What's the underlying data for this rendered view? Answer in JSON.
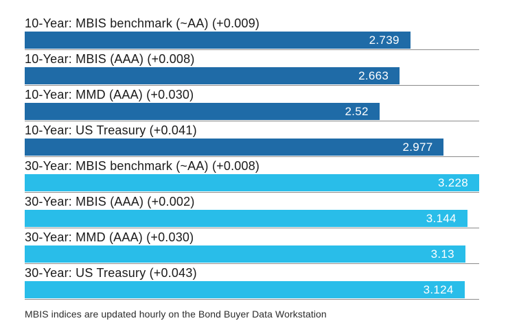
{
  "chart_data": {
    "type": "bar",
    "orientation": "horizontal",
    "title": "",
    "xlabel": "",
    "ylabel": "",
    "xlim": [
      0,
      3.228
    ],
    "grid": false,
    "legend_position": "none",
    "categories": [
      "10-Year: MBIS benchmark (~AA) (+0.009)",
      "10-Year: MBIS (AAA) (+0.008)",
      "10-Year: MMD (AAA) (+0.030)",
      "10-Year: US Treasury (+0.041)",
      "30-Year: MBIS benchmark (~AA) (+0.008)",
      "30-Year: MBIS (AAA) (+0.002)",
      "30-Year: MMD (AAA) (+0.030)",
      "30-Year: US Treasury (+0.043)"
    ],
    "values": [
      2.739,
      2.663,
      2.52,
      2.977,
      3.228,
      3.144,
      3.13,
      3.124
    ],
    "rows": [
      {
        "label": "10-Year: MBIS benchmark (~AA) (+0.009)",
        "value": 2.739,
        "display": "2.739",
        "group": "10-Year",
        "color": "#1f6ba7"
      },
      {
        "label": "10-Year: MBIS (AAA) (+0.008)",
        "value": 2.663,
        "display": "2.663",
        "group": "10-Year",
        "color": "#1f6ba7"
      },
      {
        "label": "10-Year: MMD (AAA) (+0.030)",
        "value": 2.52,
        "display": "2.52",
        "group": "10-Year",
        "color": "#1f6ba7"
      },
      {
        "label": "10-Year: US Treasury (+0.041)",
        "value": 2.977,
        "display": "2.977",
        "group": "10-Year",
        "color": "#1f6ba7"
      },
      {
        "label": "30-Year: MBIS benchmark (~AA) (+0.008)",
        "value": 3.228,
        "display": "3.228",
        "group": "30-Year",
        "color": "#29bde9"
      },
      {
        "label": "30-Year: MBIS (AAA) (+0.002)",
        "value": 3.144,
        "display": "3.144",
        "group": "30-Year",
        "color": "#29bde9"
      },
      {
        "label": "30-Year: MMD (AAA) (+0.030)",
        "value": 3.13,
        "display": "3.13",
        "group": "30-Year",
        "color": "#29bde9"
      },
      {
        "label": "30-Year: US Treasury (+0.043)",
        "value": 3.124,
        "display": "3.124",
        "group": "30-Year",
        "color": "#29bde9"
      }
    ],
    "series": [
      {
        "name": "10-Year",
        "color": "#1f6ba7",
        "values": [
          2.739,
          2.663,
          2.52,
          2.977
        ]
      },
      {
        "name": "30-Year",
        "color": "#29bde9",
        "values": [
          3.228,
          3.144,
          3.13,
          3.124
        ]
      }
    ],
    "colors": {
      "ten_year_bar": "#1f6ba7",
      "thirty_year_bar": "#29bde9",
      "baseline": "#8a8a8a",
      "value_label": "#ffffff",
      "category_label": "#1a1a1a"
    },
    "footnote": "MBIS indices are updated hourly on the Bond Buyer Data Workstation"
  }
}
